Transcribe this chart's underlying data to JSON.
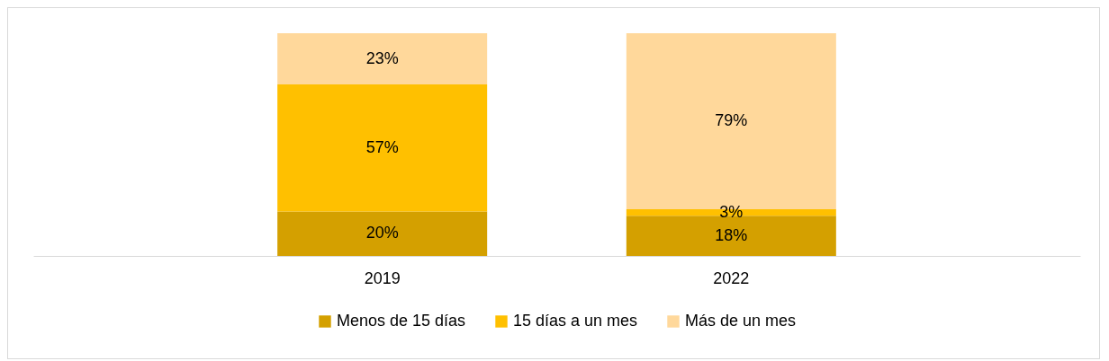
{
  "chart_data": {
    "type": "bar",
    "categories": [
      "2019",
      "2022"
    ],
    "stacked": true,
    "legend": "bottom",
    "series": [
      {
        "name": "Menos de 15 días",
        "color": "#d4a000",
        "values": [
          20,
          18
        ],
        "value_labels": [
          "20%",
          "18%"
        ]
      },
      {
        "name": "15 días a un mes",
        "color": "#ffc000",
        "values": [
          57,
          3
        ],
        "value_labels": [
          "57%",
          "3%"
        ]
      },
      {
        "name": "Más de un mes",
        "color": "#ffd89b",
        "values": [
          23,
          79
        ],
        "value_labels": [
          "23%",
          "79%"
        ]
      }
    ]
  }
}
